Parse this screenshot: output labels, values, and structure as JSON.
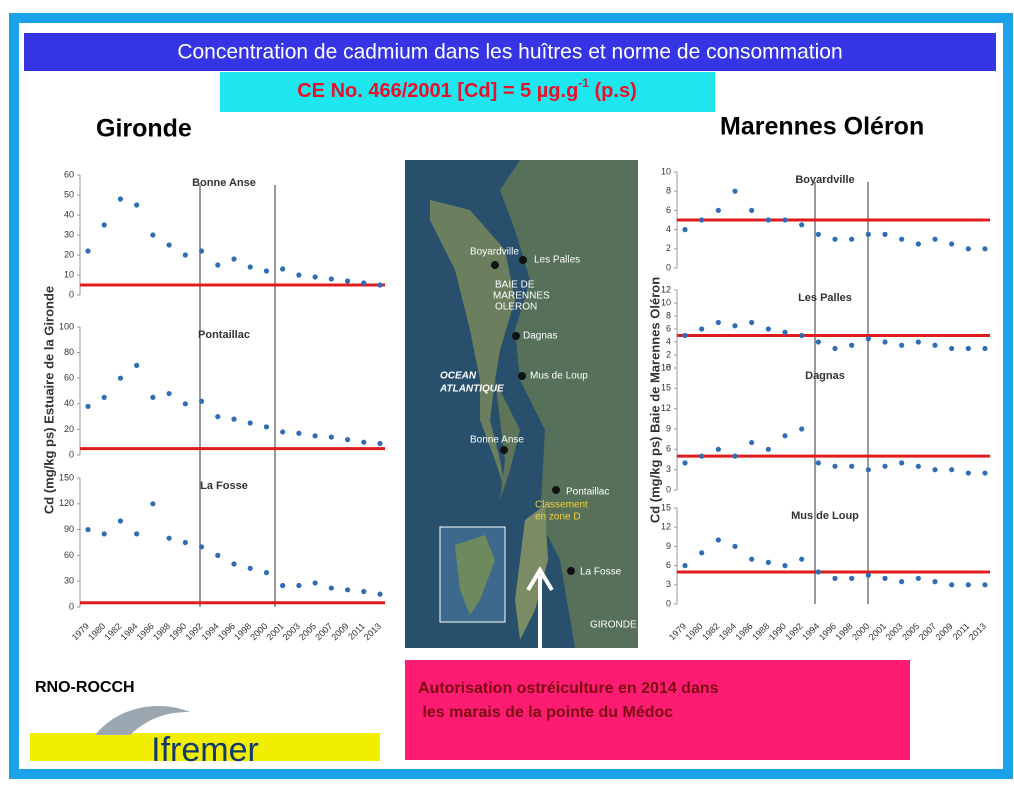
{
  "header": {
    "title": "Concentration de cadmium dans les huîtres et norme de consommation",
    "norm_prefix": "CE No. 466/2001 [Cd] = 5 µg.g",
    "norm_exp": "-1",
    "norm_suffix": " (p.s)"
  },
  "left": {
    "region": "Gironde",
    "y_label": "Cd (mg/kg ps) Estuaire de la Gironde",
    "x_labels": [
      "1979",
      "1980",
      "1982",
      "1984",
      "1986",
      "1988",
      "1990",
      "1992",
      "1994",
      "1996",
      "1998",
      "2000",
      "2001",
      "2003",
      "2005",
      "2007",
      "2009",
      "2011",
      "2013"
    ],
    "panels": [
      {
        "type": "scatter",
        "title": "Bonne Anse",
        "ylim": [
          0,
          60
        ],
        "yticks": [
          0,
          10,
          20,
          30,
          40,
          50,
          60
        ],
        "limit": 5,
        "color": "#2f6db5",
        "values": [
          22,
          35,
          48,
          45,
          30,
          25,
          20,
          22,
          15,
          18,
          14,
          12,
          13,
          10,
          9,
          8,
          7,
          6,
          5
        ]
      },
      {
        "type": "scatter",
        "title": "Pontaillac",
        "ylim": [
          0,
          100
        ],
        "yticks": [
          0,
          20,
          40,
          60,
          80,
          100
        ],
        "limit": 5,
        "color": "#2f6db5",
        "values": [
          38,
          45,
          60,
          70,
          45,
          48,
          40,
          42,
          30,
          28,
          25,
          22,
          18,
          17,
          15,
          14,
          12,
          10,
          9
        ]
      },
      {
        "type": "scatter",
        "title": "La Fosse",
        "ylim": [
          0,
          150
        ],
        "yticks": [
          0,
          30,
          60,
          90,
          120,
          150
        ],
        "limit": 5,
        "color": "#2f6db5",
        "values": [
          90,
          85,
          100,
          85,
          120,
          80,
          75,
          70,
          60,
          50,
          45,
          40,
          25,
          25,
          28,
          22,
          20,
          18,
          15
        ]
      }
    ]
  },
  "right": {
    "region": "Marennes Oléron",
    "y_label": "Cd (mg/kg ps) Baie de Marennes Oléron",
    "x_labels": [
      "1979",
      "1980",
      "1982",
      "1984",
      "1986",
      "1988",
      "1990",
      "1992",
      "1994",
      "1996",
      "1998",
      "2000",
      "2001",
      "2003",
      "2005",
      "2007",
      "2009",
      "2011",
      "2013"
    ],
    "panels": [
      {
        "type": "scatter",
        "title": "Boyardville",
        "ylim": [
          0,
          10
        ],
        "yticks": [
          0,
          2,
          4,
          6,
          8,
          10
        ],
        "limit": 5,
        "color": "#2f6db5",
        "values": [
          4,
          5,
          6,
          8,
          6,
          5,
          5,
          4.5,
          3.5,
          3,
          3,
          3.5,
          3.5,
          3,
          2.5,
          3,
          2.5,
          2,
          2
        ]
      },
      {
        "type": "scatter",
        "title": "Les Palles",
        "ylim": [
          0,
          12
        ],
        "yticks": [
          0,
          2,
          4,
          6,
          8,
          10,
          12
        ],
        "limit": 5,
        "color": "#2f6db5",
        "values": [
          5,
          6,
          7,
          6.5,
          7,
          6,
          5.5,
          5,
          4,
          3,
          3.5,
          4.5,
          4,
          3.5,
          4,
          3.5,
          3,
          3,
          3
        ]
      },
      {
        "type": "scatter",
        "title": "Dagnas",
        "ylim": [
          0,
          18
        ],
        "yticks": [
          0,
          3,
          6,
          9,
          12,
          15,
          18
        ],
        "limit": 5,
        "color": "#2f6db5",
        "values": [
          4,
          5,
          6,
          5,
          7,
          6,
          8,
          9,
          4,
          3.5,
          3.5,
          3,
          3.5,
          4,
          3.5,
          3,
          3,
          2.5,
          2.5
        ]
      },
      {
        "type": "scatter",
        "title": "Mus de Loup",
        "ylim": [
          0,
          15
        ],
        "yticks": [
          0,
          3,
          6,
          9,
          12,
          15
        ],
        "limit": 5,
        "color": "#2f6db5",
        "values": [
          6,
          8,
          10,
          9,
          7,
          6.5,
          6,
          7,
          5,
          4,
          4,
          4.5,
          4,
          3.5,
          4,
          3.5,
          3,
          3,
          3
        ]
      }
    ]
  },
  "map": {
    "labels": [
      "Boyardville",
      "Les Palles",
      "BAIE DE",
      "MARENNES",
      "OLERON",
      "Dagnas",
      "Mus de Loup",
      "OCEAN",
      "ATLANTIQUE",
      "Bonne Anse",
      "Pontaillac",
      "Classement",
      "en zone D",
      "La Fosse",
      "GIRONDE"
    ]
  },
  "footer": {
    "source": "RNO-ROCCH",
    "logo": "Ifremer",
    "note_1": "Autorisation ostréiculture en 2014 dans",
    "note_2": " les marais de la pointe du Médoc"
  }
}
